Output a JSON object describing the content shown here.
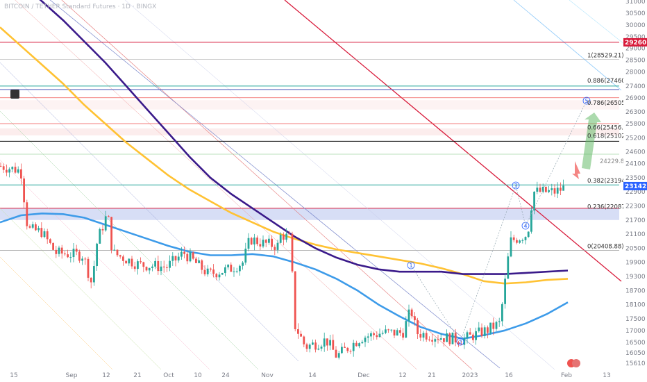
{
  "header": {
    "title": "BITCOIN / TETHER Standard Futures · 1D · BINGX"
  },
  "theme": {
    "up": "#26a69a",
    "down": "#ef5350",
    "accent_red": "#d81b3b",
    "price_tag": "#2962ff",
    "ma_yellow": "#ffc233",
    "ma_blue": "#3d9be9",
    "ma_purple": "#3a1a8a"
  },
  "chart_data": {
    "type": "candlestick",
    "title": "BITCOIN / TETHER Standard Futures · 1D · BINGX",
    "x_ticks": [
      "15",
      "Sep",
      "12",
      "21",
      "Oct",
      "10",
      "24",
      "Nov",
      "14",
      "Dec",
      "12",
      "21",
      "2023",
      "16",
      "Feb",
      "13"
    ],
    "y_ticks": [
      15610,
      16050,
      16500,
      17000,
      17500,
      18100,
      18700,
      19300,
      19900,
      20500,
      21100,
      21700,
      22300,
      22900,
      23500,
      24100,
      24600,
      25200,
      25800,
      26300,
      26900,
      27400,
      28000,
      28500,
      29000,
      29500,
      30000,
      30500,
      31000
    ],
    "ylim": [
      15400,
      31000
    ],
    "current_price": 23142.53,
    "resistance_price": 29260.03,
    "fib_levels": [
      {
        "ratio": "1",
        "price": 28529.21
      },
      {
        "ratio": "0.886",
        "price": 27460.35
      },
      {
        "ratio": "0.786",
        "price": 26505.78
      },
      {
        "ratio": "0.66",
        "price": 25456.32
      },
      {
        "ratio": "0.618",
        "price": 25102.67
      },
      {
        "ratio": "0.382",
        "price": 23194.71
      },
      {
        "ratio": "0.236",
        "price": 22087.69
      },
      {
        "ratio": "0",
        "price": 20408.88
      }
    ],
    "target_label": "24229.84",
    "wave_labels": [
      "1",
      "2",
      "3",
      "4",
      "5"
    ],
    "moving_averages": [
      {
        "color": "#ffc233",
        "values": [
          29900,
          29100,
          28300,
          27500,
          26600,
          25800,
          25000,
          24300,
          23600,
          23000,
          22500,
          22000,
          21600,
          21200,
          20900,
          20650,
          20450,
          20300,
          20150,
          20000,
          19850,
          19650,
          19400,
          19100,
          19000,
          19050,
          19150,
          19200
        ]
      },
      {
        "color": "#3d9be9",
        "values": [
          21600,
          21900,
          21980,
          21950,
          21800,
          21500,
          21200,
          20900,
          20600,
          20350,
          20200,
          20200,
          20250,
          20150,
          19900,
          19600,
          19200,
          18700,
          18100,
          17600,
          17150,
          16850,
          16650,
          16800,
          17000,
          17300,
          17700,
          18200
        ]
      },
      {
        "color": "#3a1a8a",
        "values": [
          32500,
          31800,
          31000,
          30200,
          29300,
          28400,
          27400,
          26400,
          25400,
          24400,
          23500,
          22800,
          22200,
          21600,
          21000,
          20500,
          20100,
          19800,
          19600,
          19500,
          19500,
          19500,
          19400,
          19400,
          19400,
          19450,
          19500,
          19550
        ]
      }
    ]
  }
}
